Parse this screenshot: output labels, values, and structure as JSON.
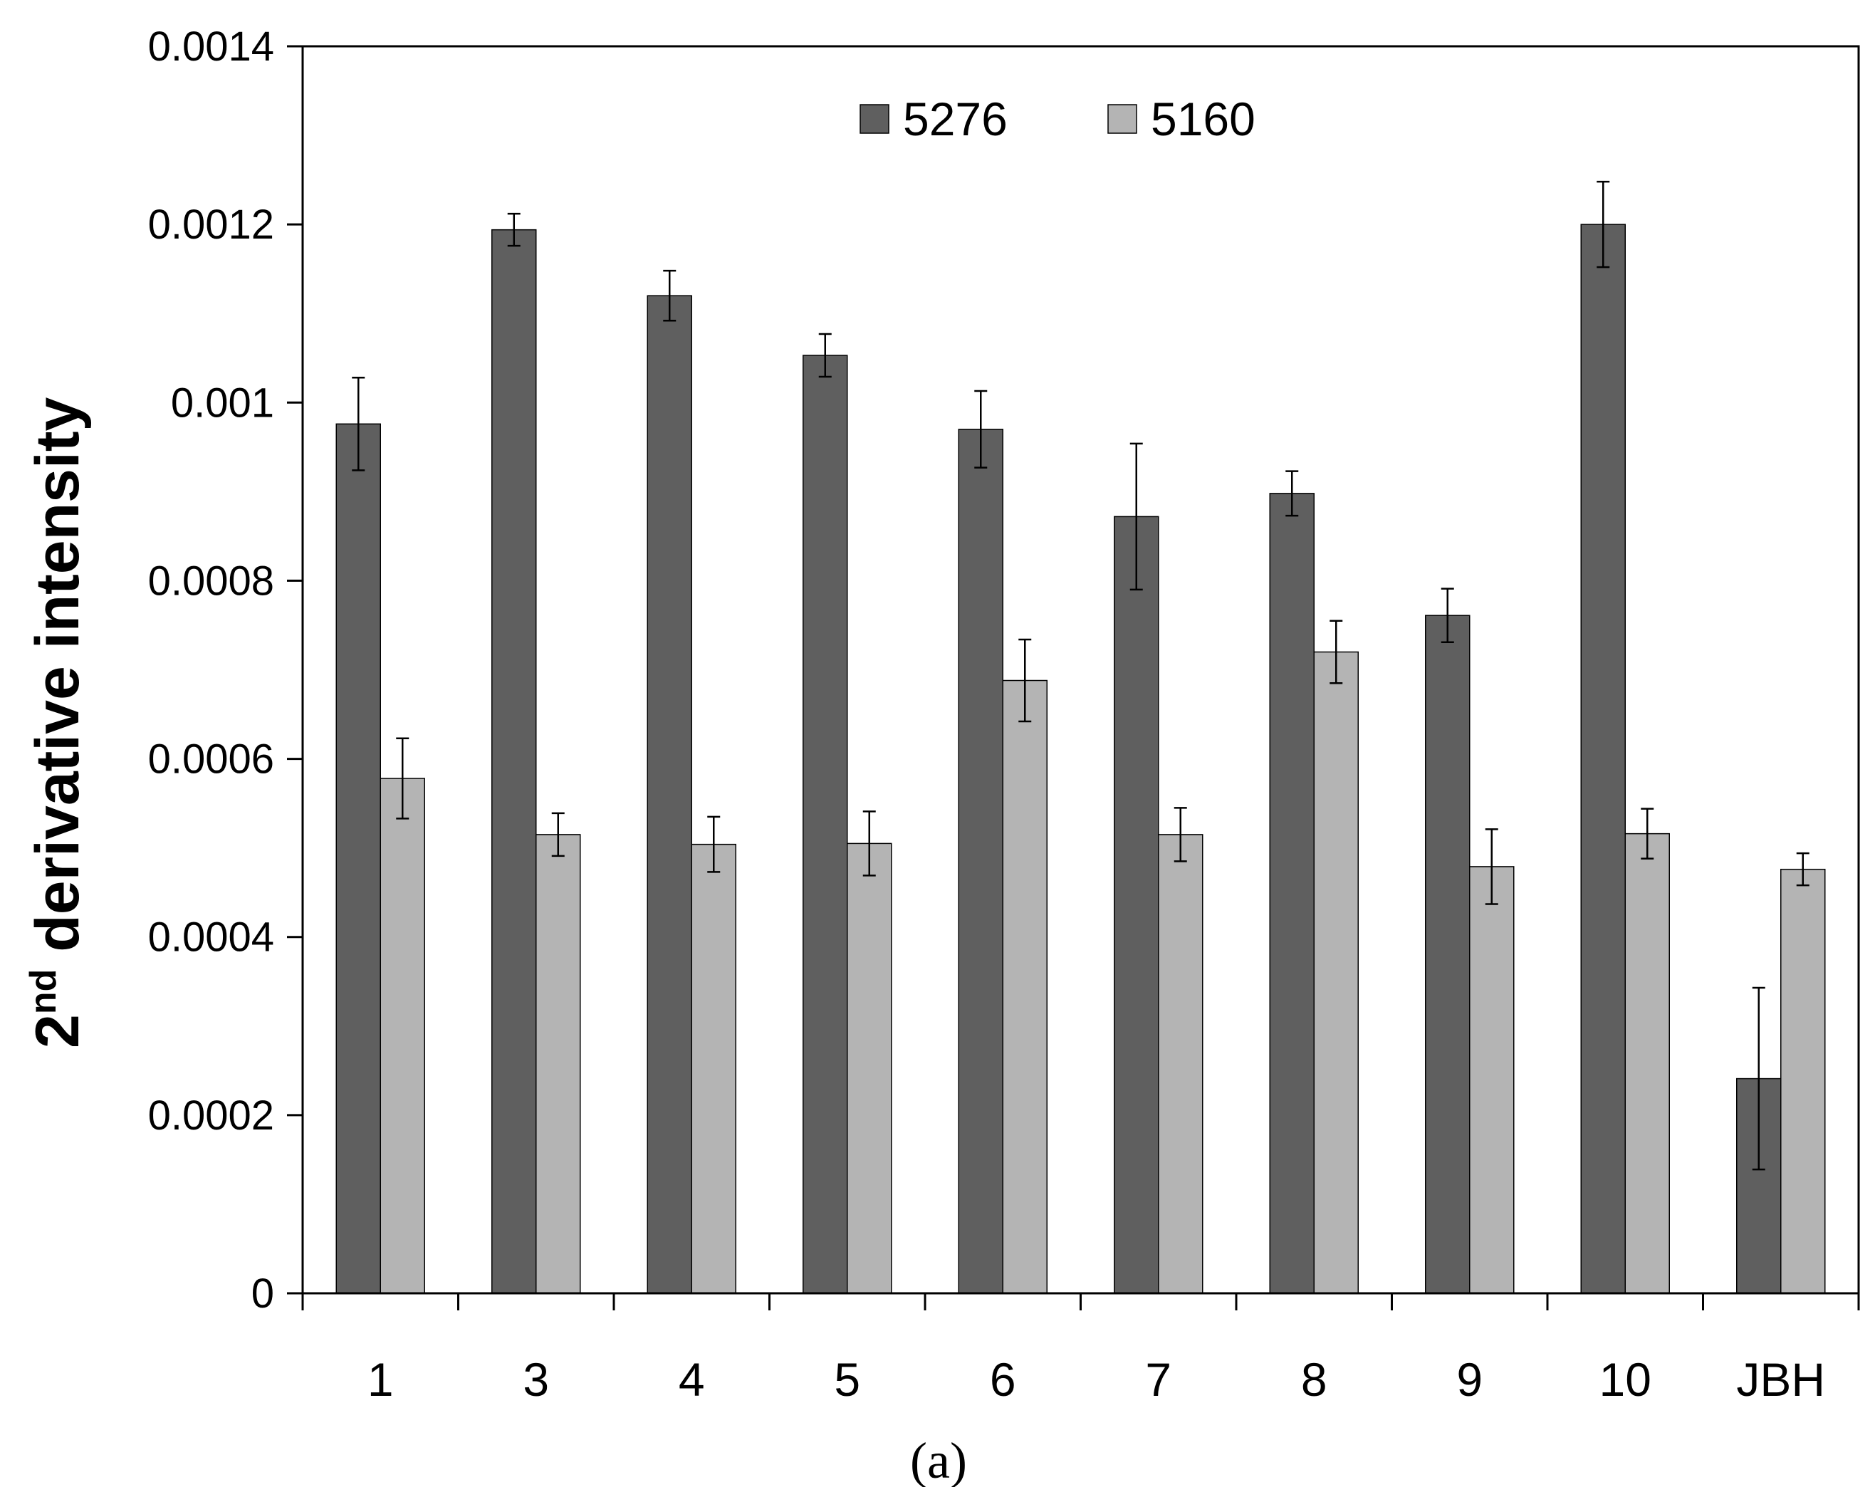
{
  "chart_data": {
    "type": "bar",
    "categories": [
      "1",
      "3",
      "4",
      "5",
      "6",
      "7",
      "8",
      "9",
      "10",
      "JBH"
    ],
    "series": [
      {
        "name": "5276",
        "color": "#5f5f5f",
        "values": [
          0.000976,
          0.001194,
          0.00112,
          0.001053,
          0.00097,
          0.000872,
          0.000898,
          0.000761,
          0.0012,
          0.000241
        ],
        "errors": [
          5.2e-05,
          1.8e-05,
          2.8e-05,
          2.4e-05,
          4.3e-05,
          8.2e-05,
          2.5e-05,
          3e-05,
          4.8e-05,
          0.000102
        ]
      },
      {
        "name": "5160",
        "color": "#b4b4b4",
        "values": [
          0.000578,
          0.000515,
          0.000504,
          0.000505,
          0.000688,
          0.000515,
          0.00072,
          0.000479,
          0.000516,
          0.000476
        ],
        "errors": [
          4.5e-05,
          2.4e-05,
          3.1e-05,
          3.6e-05,
          4.6e-05,
          3e-05,
          3.5e-05,
          4.2e-05,
          2.8e-05,
          1.8e-05
        ]
      }
    ],
    "ylim": [
      0,
      0.0014
    ],
    "yticks": [
      "0",
      "0.0002",
      "0.0004",
      "0.0006",
      "0.0008",
      "0.001",
      "0.0012",
      "0.0014"
    ],
    "ylabel_main": "2",
    "ylabel_sup": "nd",
    "ylabel_rest": " derivative intensity",
    "xlabel": "",
    "legend_placement": "top-center",
    "grid": false
  },
  "caption": "(a)"
}
